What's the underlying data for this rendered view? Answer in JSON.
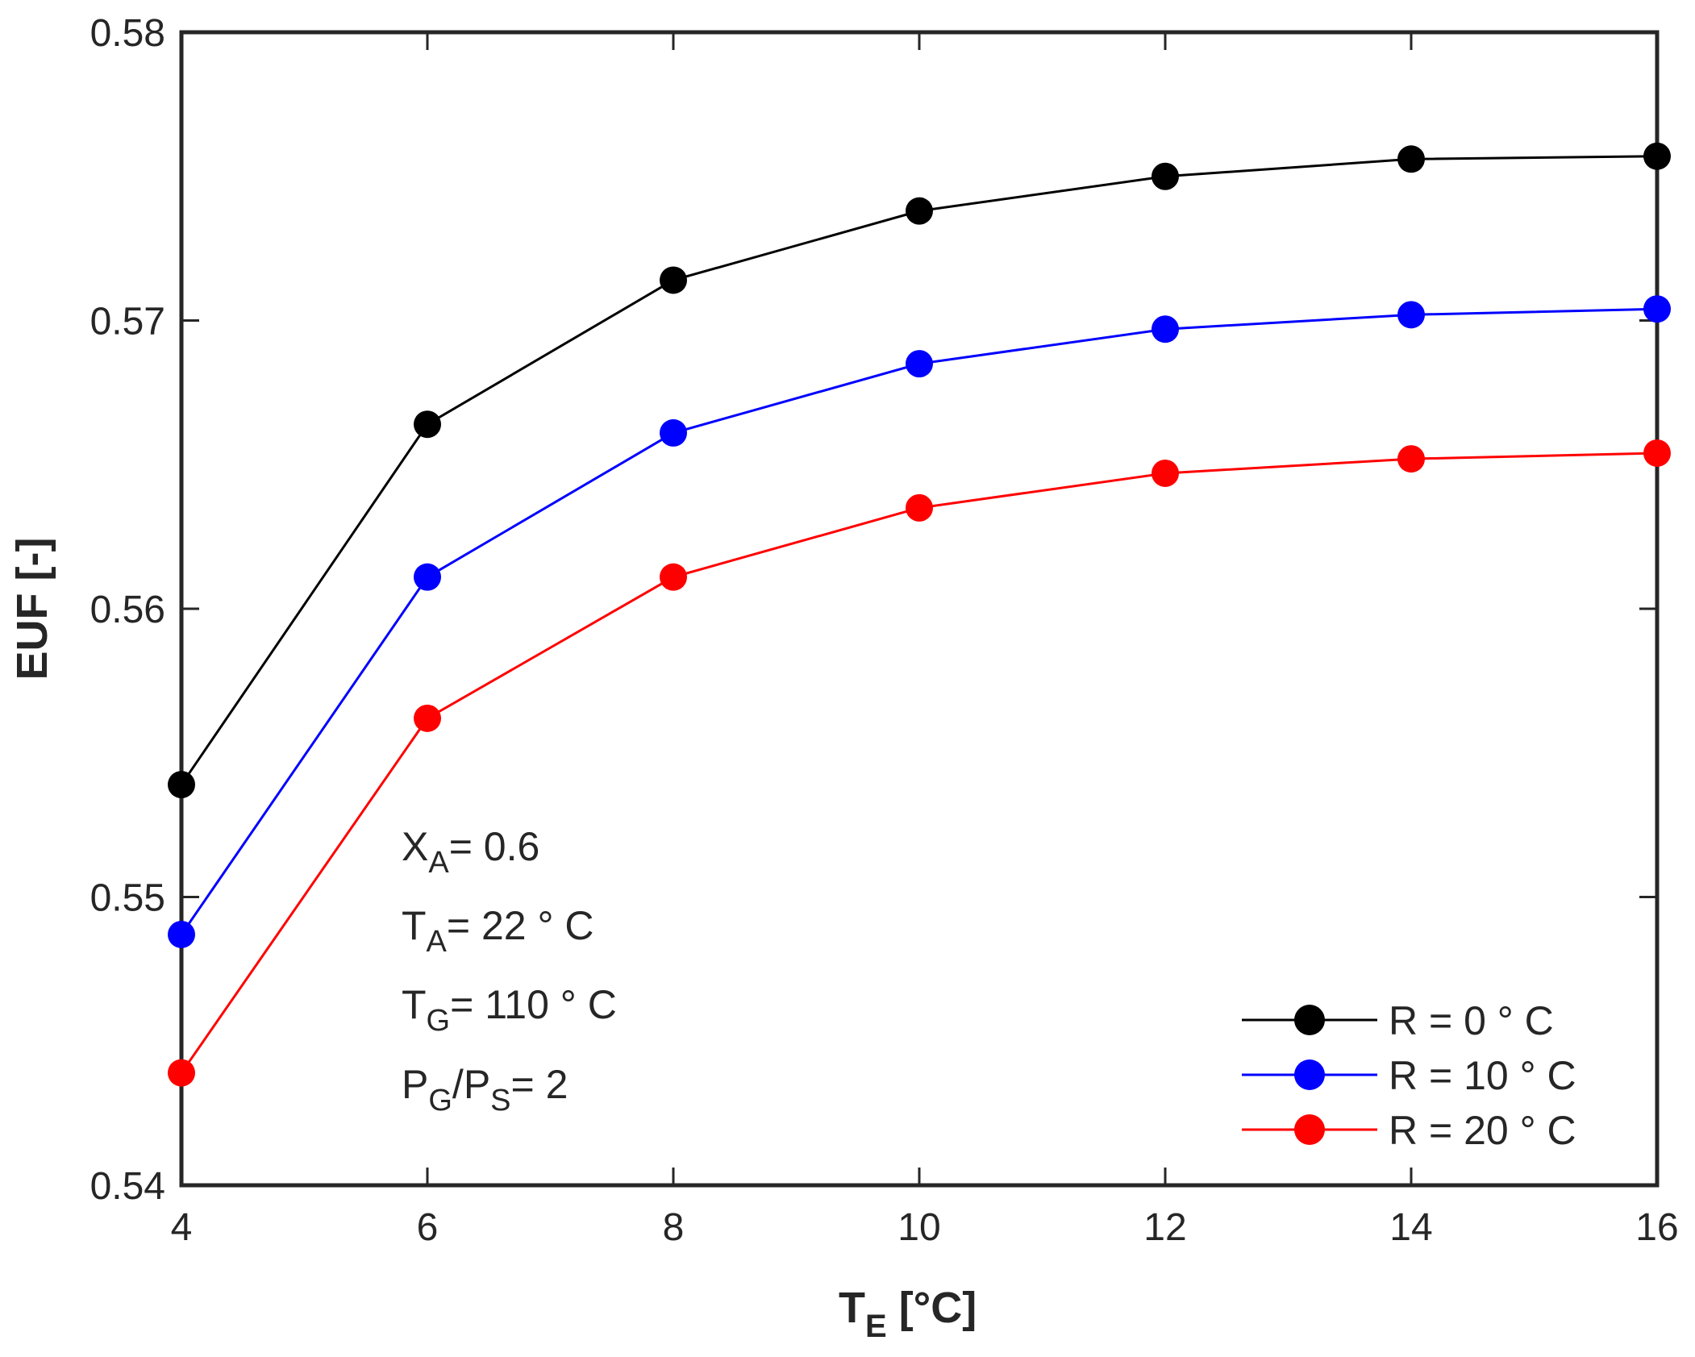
{
  "chart_data": {
    "type": "line",
    "xlabel_main": "T",
    "xlabel_sub": "E",
    "xlabel_unit": " [°C]",
    "ylabel": "EUF [-]",
    "x": [
      4,
      6,
      8,
      10,
      12,
      14,
      16
    ],
    "xlim": [
      4,
      16
    ],
    "ylim": [
      0.54,
      0.58
    ],
    "xticks": [
      "4",
      "6",
      "8",
      "10",
      "12",
      "14",
      "16"
    ],
    "yticks": [
      "0.54",
      "0.55",
      "0.56",
      "0.57",
      "0.58"
    ],
    "grid": false,
    "legend_position": "bottom-right",
    "series": [
      {
        "name": "R = 0 ° C",
        "color": "#000000",
        "values": [
          0.5539,
          0.5664,
          0.5714,
          0.5738,
          0.575,
          0.5756,
          0.5757
        ]
      },
      {
        "name": "R = 10 ° C",
        "color": "#0000ff",
        "values": [
          0.5487,
          0.5611,
          0.5661,
          0.5685,
          0.5697,
          0.5702,
          0.5704
        ]
      },
      {
        "name": "R = 20 ° C",
        "color": "#ff0000",
        "values": [
          0.5439,
          0.5562,
          0.5611,
          0.5635,
          0.5647,
          0.5652,
          0.5654
        ]
      }
    ],
    "annotations": {
      "xa": {
        "main": "X",
        "sub": "A",
        "rest": "= 0.6"
      },
      "ta": {
        "main": "T",
        "sub": "A",
        "rest": "= 22 ° C"
      },
      "tg": {
        "main": "T",
        "sub": "G",
        "rest": "= 110 ° C"
      },
      "pg": {
        "main1": "P",
        "sub1": "G",
        "mid": "/P",
        "sub2": "S",
        "rest": "= 2"
      }
    }
  }
}
